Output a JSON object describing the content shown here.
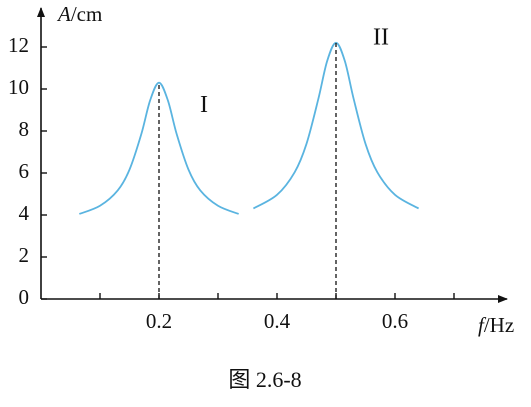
{
  "chart_data": {
    "type": "line",
    "y_label_symbol": "A",
    "y_label_unit": "/cm",
    "x_label_symbol": "f",
    "x_label_unit": "/Hz",
    "caption": "图 2.6-8",
    "xlim": [
      0,
      0.78
    ],
    "ylim": [
      0,
      13.5
    ],
    "xticks": [
      0.2,
      0.4,
      0.6
    ],
    "x_minor_ticks": [
      0.1,
      0.3,
      0.5,
      0.7
    ],
    "yticks": [
      0,
      2,
      4,
      6,
      8,
      10,
      12
    ],
    "series": [
      {
        "name": "I",
        "color": "#5ab4e0",
        "x": [
          0.065,
          0.1,
          0.13,
          0.15,
          0.17,
          0.185,
          0.2,
          0.215,
          0.23,
          0.25,
          0.27,
          0.3,
          0.335
        ],
        "values": [
          4.05,
          4.44,
          5.17,
          6.16,
          7.85,
          9.46,
          10.3,
          9.46,
          7.85,
          6.16,
          5.17,
          4.44,
          4.05
        ],
        "peak_x": 0.2,
        "peak": 10.3
      },
      {
        "name": "II",
        "color": "#5ab4e0",
        "x": [
          0.36,
          0.4,
          0.43,
          0.45,
          0.47,
          0.485,
          0.5,
          0.515,
          0.53,
          0.55,
          0.57,
          0.6,
          0.64
        ],
        "values": [
          4.31,
          4.96,
          6.04,
          7.39,
          9.52,
          11.33,
          12.2,
          11.33,
          9.52,
          7.39,
          6.04,
          4.96,
          4.31
        ],
        "peak_x": 0.5,
        "peak": 12.2
      }
    ]
  }
}
